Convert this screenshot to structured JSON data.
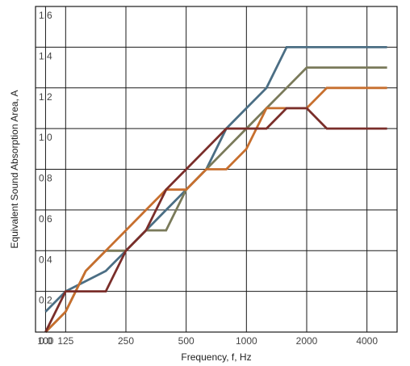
{
  "chart_data": {
    "type": "line",
    "title": "",
    "xlabel": "Frequency, f, Hz",
    "ylabel": "Equivalent Sound Absorption Area, A",
    "x": [
      100,
      125,
      160,
      200,
      250,
      315,
      400,
      500,
      630,
      800,
      1000,
      1250,
      1600,
      2000,
      2500,
      3150,
      4000,
      5000
    ],
    "x_ticks": [
      100,
      125,
      250,
      500,
      1000,
      2000,
      4000
    ],
    "x_tick_labels": [
      "100",
      "125",
      "250",
      "500",
      "1000",
      "2000",
      "4000"
    ],
    "x_origin_label": "0.0",
    "y_ticks": [
      0.2,
      0.4,
      0.6,
      0.8,
      1.0,
      1.2,
      1.4,
      1.6
    ],
    "y_tick_labels": [
      "0.2",
      "0.4",
      "0.6",
      "0.8",
      "1.0",
      "1.2",
      "1.4",
      "1.6"
    ],
    "ylim": [
      0.0,
      1.6
    ],
    "grid": true,
    "series": [
      {
        "color": "#4b6e84",
        "values": [
          0.1,
          0.2,
          0.25,
          0.3,
          0.4,
          0.5,
          0.6,
          0.7,
          0.8,
          1.0,
          1.1,
          1.2,
          1.4,
          1.4,
          1.4,
          1.4,
          1.4,
          1.4
        ]
      },
      {
        "color": "#7a7a5a",
        "values": [
          0.0,
          0.1,
          0.3,
          0.4,
          0.4,
          0.5,
          0.5,
          0.7,
          0.8,
          0.9,
          1.0,
          1.1,
          1.2,
          1.3,
          1.3,
          1.3,
          1.3,
          1.3
        ]
      },
      {
        "color": "#c76f2e",
        "values": [
          0.0,
          0.1,
          0.3,
          0.4,
          0.5,
          0.6,
          0.7,
          0.7,
          0.8,
          0.8,
          0.9,
          1.1,
          1.1,
          1.1,
          1.2,
          1.2,
          1.2,
          1.2
        ]
      },
      {
        "color": "#7a2e2a",
        "values": [
          0.0,
          0.2,
          0.2,
          0.2,
          0.4,
          0.5,
          0.7,
          0.8,
          0.9,
          1.0,
          1.0,
          1.0,
          1.1,
          1.1,
          1.0,
          1.0,
          1.0,
          1.0
        ]
      }
    ]
  }
}
